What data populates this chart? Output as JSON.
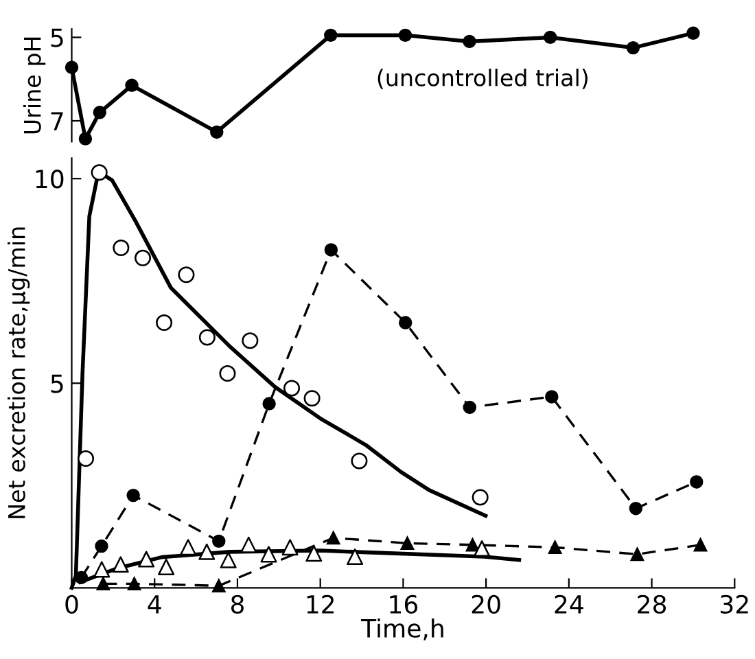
{
  "chart_data": [
    {
      "type": "line",
      "ylabel": "Urine pH",
      "xlim": [
        0,
        32
      ],
      "ylim": [
        7.5,
        4.8
      ],
      "yticks": [
        5,
        7
      ],
      "tick_labels": "y",
      "grid": false,
      "legend": false,
      "marker": "circle",
      "line_style": "solid",
      "annotations": [
        "(uncontrolled trial)"
      ],
      "series": [
        {
          "color": "#000000",
          "x": [
            0,
            0.66,
            1.35,
            2.9,
            7.0,
            12.5,
            16.1,
            19.2,
            23.1,
            27.1,
            30.0
          ],
          "values": [
            5.72,
            7.43,
            6.8,
            6.15,
            7.27,
            4.95,
            4.95,
            5.1,
            5.0,
            5.25,
            4.9
          ]
        }
      ]
    },
    {
      "type": "line",
      "xlabel": "Time,h",
      "ylabel": "Net excretion rate,µg/min",
      "xlim": [
        0,
        32
      ],
      "ylim": [
        0,
        10.5
      ],
      "xticks": [
        0,
        4,
        8,
        12,
        16,
        20,
        24,
        28,
        32
      ],
      "yticks": [
        5,
        10
      ],
      "grid": false,
      "legend": false,
      "series": [
        {
          "type": "scatter",
          "color": "#000000",
          "marker": "circle",
          "x": [
            0.68,
            1.33,
            2.38,
            3.43,
            4.46,
            5.53,
            6.54,
            7.52,
            8.61,
            10.62,
            11.6,
            13.88,
            19.72
          ],
          "values": [
            3.16,
            10.15,
            8.31,
            8.06,
            6.48,
            7.65,
            6.12,
            5.24,
            6.04,
            4.88,
            4.63,
            3.1,
            2.21
          ]
        },
        {
          "type": "line",
          "color": "#000000",
          "marker": "none",
          "line_style": "solid",
          "x": [
            0,
            0.2,
            0.52,
            0.85,
            1.29,
            1.95,
            3.07,
            4.79,
            7.63,
            9.81,
            12.0,
            14.2,
            15.9,
            17.25,
            19.98
          ],
          "values": [
            0,
            0.3,
            5.24,
            9.08,
            10.17,
            9.96,
            8.97,
            7.33,
            5.9,
            4.91,
            4.14,
            3.49,
            2.83,
            2.39,
            1.76
          ]
        },
        {
          "type": "line",
          "color": "#000000",
          "marker": "circle",
          "line_style": "dashed",
          "x": [
            0.46,
            1.44,
            2.97,
            7.1,
            9.53,
            12.52,
            16.11,
            19.21,
            23.17,
            27.23,
            30.16
          ],
          "values": [
            0.25,
            1.02,
            2.26,
            1.14,
            4.5,
            8.26,
            6.48,
            4.41,
            4.67,
            1.94,
            2.59
          ]
        },
        {
          "type": "scatter",
          "color": "#000000",
          "marker": "triangle",
          "x": [
            1.45,
            2.36,
            3.6,
            4.56,
            5.62,
            6.52,
            7.56,
            8.54,
            9.51,
            10.54,
            11.69,
            13.67,
            19.8
          ],
          "values": [
            0.45,
            0.57,
            0.7,
            0.51,
            0.99,
            0.88,
            0.68,
            1.05,
            0.82,
            0.99,
            0.84,
            0.76,
            0.96
          ]
        },
        {
          "type": "line",
          "color": "#000000",
          "marker": "none",
          "line_style": "solid",
          "x": [
            0.41,
            2.16,
            4.35,
            7.63,
            12.0,
            19.93,
            21.6
          ],
          "values": [
            0.14,
            0.47,
            0.75,
            0.88,
            0.91,
            0.76,
            0.68
          ]
        },
        {
          "type": "line",
          "color": "#000000",
          "marker": "triangle",
          "line_style": "dashed",
          "x": [
            1.52,
            3.02,
            7.1,
            12.63,
            16.2,
            19.35,
            23.33,
            27.3,
            30.35
          ],
          "values": [
            0.1,
            0.1,
            0.05,
            1.22,
            1.09,
            1.05,
            0.99,
            0.82,
            1.05
          ]
        }
      ]
    }
  ]
}
